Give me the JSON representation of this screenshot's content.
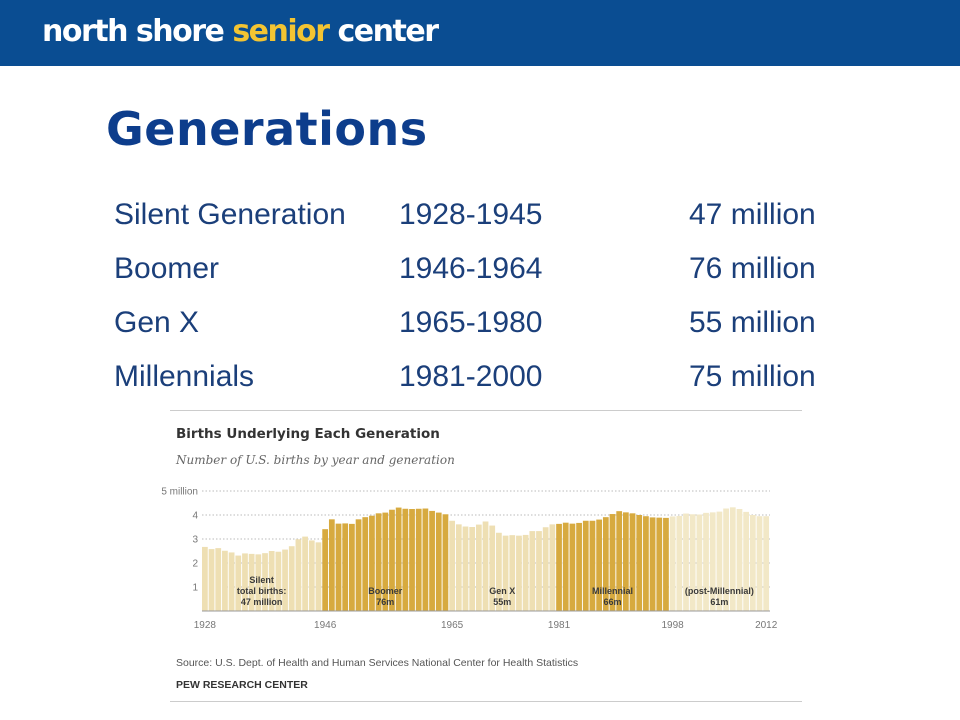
{
  "header": {
    "logo_words": [
      "north shore ",
      "senior",
      " center"
    ]
  },
  "slide": {
    "title": "Generations",
    "rows": [
      {
        "name": "Silent Generation",
        "years": "1928-1945",
        "count": "47 million"
      },
      {
        "name": "Boomer",
        "years": "1946-1964",
        "count": "76 million"
      },
      {
        "name": "Gen X",
        "years": "1965-1980",
        "count": "55 million"
      },
      {
        "name": "Millennials",
        "years": "1981-2000",
        "count": "75 million"
      }
    ]
  },
  "chart_data": {
    "type": "bar",
    "title": "Births Underlying Each Generation",
    "subtitle": "Number of U.S. births by year and generation",
    "ylim": [
      0,
      5
    ],
    "y_ticks": [
      "1",
      "2",
      "3",
      "4",
      "5 million"
    ],
    "x_tick_labels": [
      "1928",
      "1946",
      "1965",
      "1981",
      "1998",
      "2012"
    ],
    "grid": true,
    "years": [
      1928,
      1929,
      1930,
      1931,
      1932,
      1933,
      1934,
      1935,
      1936,
      1937,
      1938,
      1939,
      1940,
      1941,
      1942,
      1943,
      1944,
      1945,
      1946,
      1947,
      1948,
      1949,
      1950,
      1951,
      1952,
      1953,
      1954,
      1955,
      1956,
      1957,
      1958,
      1959,
      1960,
      1961,
      1962,
      1963,
      1964,
      1965,
      1966,
      1967,
      1968,
      1969,
      1970,
      1971,
      1972,
      1973,
      1974,
      1975,
      1976,
      1977,
      1978,
      1979,
      1980,
      1981,
      1982,
      1983,
      1984,
      1985,
      1986,
      1987,
      1988,
      1989,
      1990,
      1991,
      1992,
      1993,
      1994,
      1995,
      1996,
      1997,
      1998,
      1999,
      2000,
      2001,
      2002,
      2003,
      2004,
      2005,
      2006,
      2007,
      2008,
      2009,
      2010,
      2011,
      2012
    ],
    "values": [
      2.67,
      2.58,
      2.62,
      2.51,
      2.44,
      2.31,
      2.4,
      2.38,
      2.36,
      2.41,
      2.5,
      2.47,
      2.56,
      2.7,
      2.99,
      3.1,
      2.94,
      2.86,
      3.41,
      3.82,
      3.64,
      3.65,
      3.63,
      3.82,
      3.91,
      3.97,
      4.07,
      4.1,
      4.22,
      4.31,
      4.26,
      4.25,
      4.26,
      4.27,
      4.17,
      4.1,
      4.03,
      3.76,
      3.61,
      3.52,
      3.5,
      3.6,
      3.73,
      3.56,
      3.26,
      3.14,
      3.16,
      3.14,
      3.17,
      3.33,
      3.33,
      3.49,
      3.61,
      3.63,
      3.68,
      3.64,
      3.67,
      3.76,
      3.76,
      3.81,
      3.91,
      4.04,
      4.16,
      4.11,
      4.07,
      4.0,
      3.95,
      3.9,
      3.89,
      3.88,
      3.94,
      3.96,
      4.06,
      4.03,
      4.02,
      4.09,
      4.11,
      4.14,
      4.27,
      4.32,
      4.25,
      4.13,
      4.0,
      3.95,
      3.95
    ],
    "series": [
      {
        "name": "Silent",
        "start": 1928,
        "end": 1945,
        "color": "#eedfb3",
        "label": [
          "Silent",
          "total births:",
          "47 million"
        ]
      },
      {
        "name": "Boomer",
        "start": 1946,
        "end": 1964,
        "color": "#d7aa3f",
        "label": [
          "Boomer",
          "76m"
        ]
      },
      {
        "name": "Gen X",
        "start": 1965,
        "end": 1980,
        "color": "#eedfb3",
        "label": [
          "Gen X",
          "55m"
        ]
      },
      {
        "name": "Millennial",
        "start": 1981,
        "end": 1997,
        "color": "#d7aa3f",
        "label": [
          "Millennial",
          "66m"
        ]
      },
      {
        "name": "(post-Millennial)",
        "start": 1998,
        "end": 2012,
        "color": "#f2e8c7",
        "label": [
          "(post-Millennial)",
          "61m"
        ]
      }
    ],
    "source": "Source: U.S. Dept. of Health and Human Services National Center for Health Statistics",
    "credit": "PEW RESEARCH CENTER",
    "colors": {
      "axis_text": "#777777",
      "label_text": "#3a3a3a",
      "grid": "#bbbbbb"
    }
  }
}
